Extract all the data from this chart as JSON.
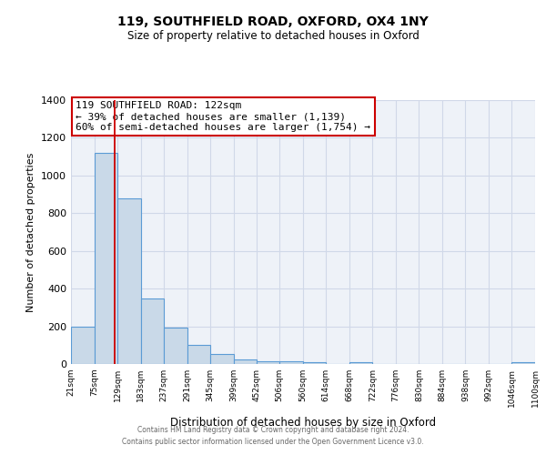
{
  "title": "119, SOUTHFIELD ROAD, OXFORD, OX4 1NY",
  "subtitle": "Size of property relative to detached houses in Oxford",
  "xlabel": "Distribution of detached houses by size in Oxford",
  "ylabel": "Number of detached properties",
  "bin_edges": [
    21,
    75,
    129,
    183,
    237,
    291,
    345,
    399,
    452,
    506,
    560,
    614,
    668,
    722,
    776,
    830,
    884,
    938,
    992,
    1046,
    1100
  ],
  "bar_heights": [
    200,
    1120,
    880,
    350,
    195,
    100,
    55,
    25,
    15,
    15,
    10,
    0,
    10,
    0,
    0,
    0,
    0,
    0,
    0,
    10
  ],
  "bar_color": "#c9d9e8",
  "bar_edge_color": "#5b9bd5",
  "red_line_x": 122,
  "ylim": [
    0,
    1400
  ],
  "yticks": [
    0,
    200,
    400,
    600,
    800,
    1000,
    1200,
    1400
  ],
  "grid_color": "#d0d8e8",
  "background_color": "#eef2f8",
  "annotation_line1": "119 SOUTHFIELD ROAD: 122sqm",
  "annotation_line2": "← 39% of detached houses are smaller (1,139)",
  "annotation_line3": "60% of semi-detached houses are larger (1,754) →",
  "annotation_box_color": "#ffffff",
  "annotation_box_edge": "#cc0000",
  "footer_line1": "Contains HM Land Registry data © Crown copyright and database right 2024.",
  "footer_line2": "Contains public sector information licensed under the Open Government Licence v3.0."
}
